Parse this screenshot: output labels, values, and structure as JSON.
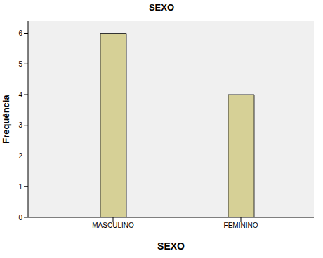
{
  "chart_data": {
    "type": "bar",
    "title": "SEXO",
    "x_label": "SEXO",
    "y_label": "Frequência",
    "categories": [
      "MASCULINO",
      "FEMININO"
    ],
    "values": [
      6,
      4
    ],
    "color": "#d6d096",
    "ylim": [
      0,
      6.4
    ],
    "yticks": [
      0,
      1,
      2,
      3,
      4,
      5,
      6
    ]
  }
}
